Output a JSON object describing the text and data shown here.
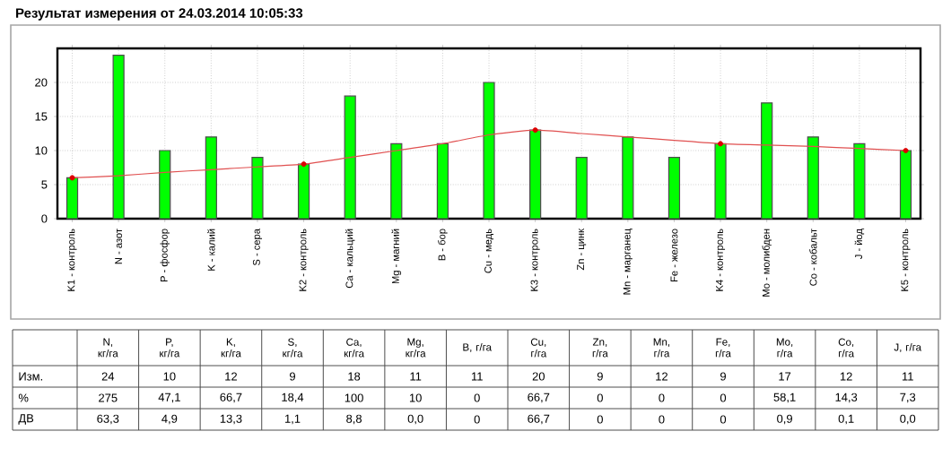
{
  "chart_data": [
    {
      "type": "bar",
      "title": "Результат измерения от  24.03.2014 10:05:33",
      "categories": [
        "K1 - контроль",
        "N - азот",
        "P - фосфор",
        "K - калий",
        "S - сера",
        "K2 - контроль",
        "Ca - кальций",
        "Mg - магний",
        "B - бор",
        "Cu - медь",
        "K3 - контроль",
        "Zn - цинк",
        "Mn - марганец",
        "Fe - железо",
        "K4 - контроль",
        "Mo - молибден",
        "Co - кобальт",
        "J - йод",
        "K5 - контроль"
      ],
      "series": [
        {
          "type": "bar",
          "color": "#00ff00",
          "values": [
            6,
            24,
            10,
            12,
            9,
            8,
            18,
            11,
            11,
            20,
            13,
            9,
            12,
            9,
            11,
            17,
            12,
            11,
            10
          ]
        },
        {
          "type": "line",
          "color": "#e05050",
          "values": [
            6,
            6.3,
            6.8,
            7.2,
            7.6,
            8,
            9,
            10,
            11,
            12.3,
            13,
            12.5,
            12,
            11.5,
            11,
            10.8,
            10.6,
            10.3,
            10
          ]
        },
        {
          "type": "scatter",
          "color": "#dd0000",
          "marker": "circle",
          "values": [
            6,
            null,
            null,
            null,
            null,
            8,
            null,
            null,
            null,
            null,
            13,
            null,
            null,
            null,
            11,
            null,
            null,
            null,
            10
          ]
        }
      ],
      "ylim": [
        0,
        25
      ],
      "yticks": [
        0,
        5,
        10,
        15,
        20
      ],
      "grid": true
    },
    {
      "type": "other",
      "categories": [
        "N, кг/га",
        "P, кг/га",
        "K, кг/га",
        "S, кг/га",
        "Ca, кг/га",
        "Mg, кг/га",
        "B, г/га",
        "Cu, г/га",
        "Zn, г/га",
        "Mn, г/га",
        "Fe, г/га",
        "Mo, г/га",
        "Co, г/га",
        "J, г/га"
      ],
      "y_categories": [
        "Изм.",
        "%",
        "ДВ"
      ],
      "cell_labels": [
        [
          "24",
          "10",
          "12",
          "9",
          "18",
          "11",
          "11",
          "20",
          "9",
          "12",
          "9",
          "17",
          "12",
          "11"
        ],
        [
          "275",
          "47,1",
          "66,7",
          "18,4",
          "100",
          "10",
          "0",
          "66,7",
          "0",
          "0",
          "0",
          "58,1",
          "14,3",
          "7,3"
        ],
        [
          "63,3",
          "4,9",
          "13,3",
          "1,1",
          "8,8",
          "0,0",
          "0",
          "66,7",
          "0",
          "0",
          "0",
          "0,9",
          "0,1",
          "0,0"
        ]
      ]
    }
  ]
}
